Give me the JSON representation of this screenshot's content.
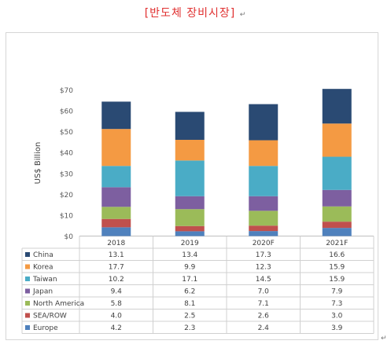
{
  "document": {
    "title": "[반도체 장비시장]",
    "para_mark": "↵"
  },
  "chart_data": {
    "type": "bar",
    "stacked": true,
    "ylabel": "US$ Billion",
    "ylim": [
      0,
      70
    ],
    "yticks": [
      "$0",
      "$10",
      "$20",
      "$30",
      "$40",
      "$50",
      "$60",
      "$70"
    ],
    "gridlines": false,
    "categories": [
      "2018",
      "2019",
      "2020F",
      "2021F"
    ],
    "series": [
      {
        "name": "China",
        "color": "#2a4a73",
        "values": [
          13.1,
          13.4,
          17.3,
          16.6
        ]
      },
      {
        "name": "Korea",
        "color": "#f49a43",
        "values": [
          17.7,
          9.9,
          12.3,
          15.9
        ]
      },
      {
        "name": "Taiwan",
        "color": "#4aacc6",
        "values": [
          10.2,
          17.1,
          14.5,
          15.9
        ]
      },
      {
        "name": "Japan",
        "color": "#7d5fa0",
        "values": [
          9.4,
          6.2,
          7.0,
          7.9
        ]
      },
      {
        "name": "North America",
        "color": "#9bbb59",
        "values": [
          5.8,
          8.1,
          7.1,
          7.3
        ]
      },
      {
        "name": "SEA/ROW",
        "color": "#c0504d",
        "values": [
          4.0,
          2.5,
          2.6,
          3.0
        ]
      },
      {
        "name": "Europe",
        "color": "#4f81bd",
        "values": [
          4.2,
          2.3,
          2.4,
          3.9
        ]
      }
    ],
    "data_table": true
  }
}
